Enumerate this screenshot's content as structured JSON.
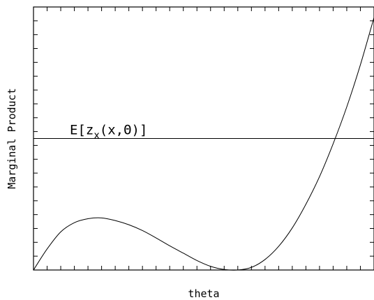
{
  "chart_data": {
    "type": "line",
    "title": "",
    "xlabel": "theta",
    "ylabel": "Marginal Product",
    "xlim": [
      0,
      1
    ],
    "ylim": [
      0,
      1
    ],
    "tick_labels_shown": false,
    "grid": false,
    "x_tick_count": 25,
    "y_tick_count": 19,
    "series": [
      {
        "values_x": [
          0,
          0.04,
          0.08,
          0.12,
          0.16,
          0.2,
          0.24,
          0.28,
          0.32,
          0.36,
          0.4,
          0.44,
          0.48,
          0.52,
          0.56,
          0.6,
          0.64,
          0.68,
          0.72,
          0.76,
          0.8,
          0.84,
          0.88,
          0.92,
          0.96,
          1.0
        ],
        "values_y": [
          0,
          0.08,
          0.145,
          0.18,
          0.195,
          0.198,
          0.188,
          0.172,
          0.15,
          0.122,
          0.092,
          0.064,
          0.036,
          0.014,
          0.002,
          0.0,
          0.01,
          0.04,
          0.09,
          0.16,
          0.25,
          0.355,
          0.48,
          0.62,
          0.78,
          0.96
        ]
      }
    ],
    "reference_lines": [
      {
        "orientation": "horizontal",
        "y": 0.5,
        "label": "E[z_x(x,Θ)]"
      }
    ]
  },
  "annotation": {
    "text_main": "E[z",
    "text_sub": "x",
    "text_tail": "(x,Θ)]"
  }
}
